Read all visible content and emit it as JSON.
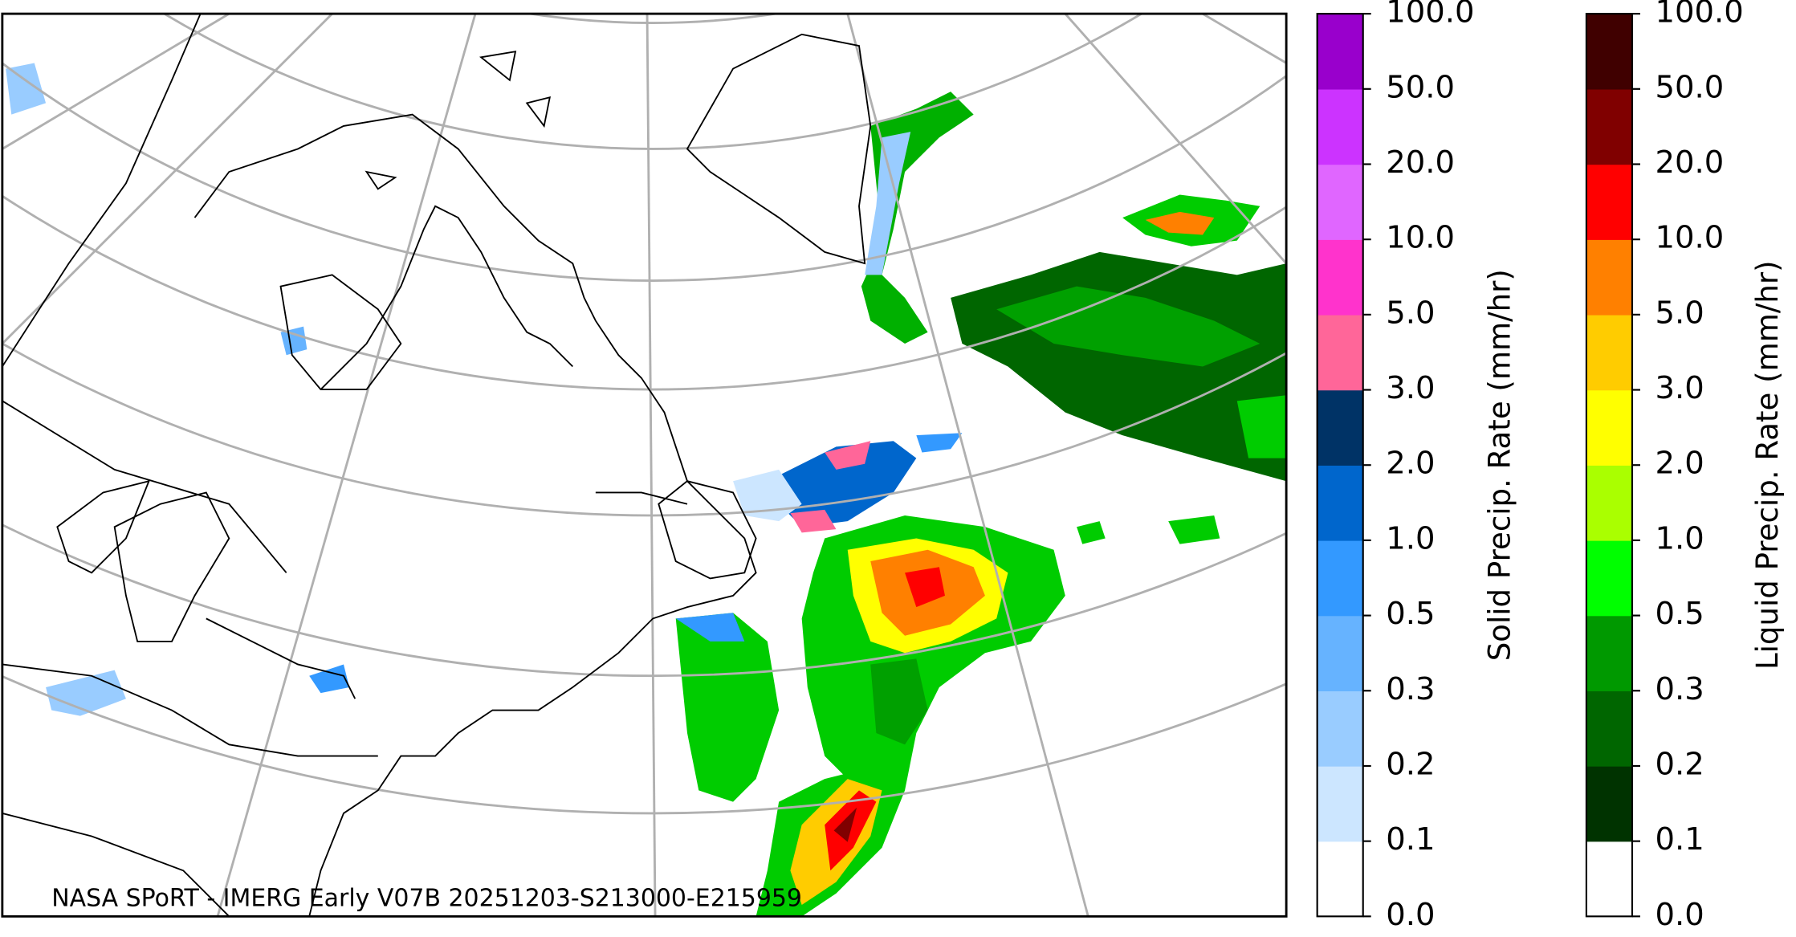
{
  "caption": "NASA SPoRT - IMERG Early V07B 20251203-S213000-E215959",
  "colorbars": [
    {
      "label": "Solid Precip. Rate (mm/hr)",
      "ticks": [
        {
          "value": 0,
          "label": "0.0"
        },
        {
          "value": 0.1,
          "label": "0.1"
        },
        {
          "value": 0.2,
          "label": "0.2"
        },
        {
          "value": 0.3,
          "label": "0.3"
        },
        {
          "value": 0.5,
          "label": "0.5"
        },
        {
          "value": 1,
          "label": "1.0"
        },
        {
          "value": 2,
          "label": "2.0"
        },
        {
          "value": 3,
          "label": "3.0"
        },
        {
          "value": 5,
          "label": "5.0"
        },
        {
          "value": 10,
          "label": "10.0"
        },
        {
          "value": 20,
          "label": "20.0"
        },
        {
          "value": 50,
          "label": "50.0"
        },
        {
          "value": 100,
          "label": "100.0"
        }
      ],
      "colors": [
        "#ffffff",
        "#cce6ff",
        "#99ccff",
        "#66b3ff",
        "#3399ff",
        "#0066cc",
        "#003366",
        "#ff6699",
        "#ff33cc",
        "#e066ff",
        "#cc33ff",
        "#9900cc"
      ]
    },
    {
      "label": "Liquid Precip. Rate (mm/hr)",
      "ticks": [
        {
          "value": 0,
          "label": "0.0"
        },
        {
          "value": 0.1,
          "label": "0.1"
        },
        {
          "value": 0.2,
          "label": "0.2"
        },
        {
          "value": 0.3,
          "label": "0.3"
        },
        {
          "value": 0.5,
          "label": "0.5"
        },
        {
          "value": 1,
          "label": "1.0"
        },
        {
          "value": 2,
          "label": "2.0"
        },
        {
          "value": 3,
          "label": "3.0"
        },
        {
          "value": 5,
          "label": "5.0"
        },
        {
          "value": 10,
          "label": "10.0"
        },
        {
          "value": 20,
          "label": "20.0"
        },
        {
          "value": 50,
          "label": "50.0"
        },
        {
          "value": 100,
          "label": "100.0"
        }
      ],
      "colors": [
        "#ffffff",
        "#003300",
        "#006600",
        "#009900",
        "#00ff00",
        "#aaff00",
        "#ffff00",
        "#ffcc00",
        "#ff8000",
        "#ff0000",
        "#800000",
        "#400000"
      ]
    }
  ]
}
